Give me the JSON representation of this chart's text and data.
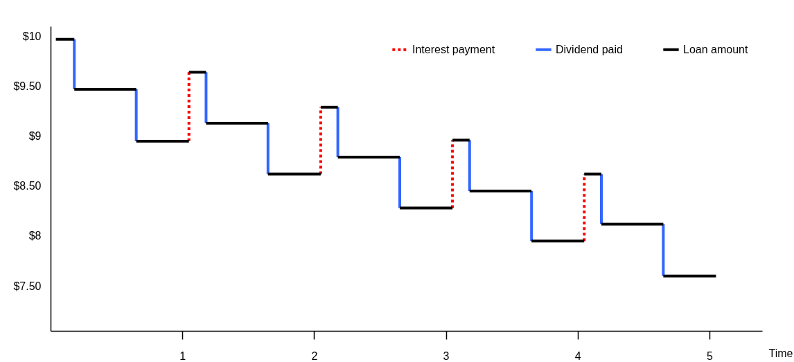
{
  "chart_data": {
    "type": "line",
    "xlabel": "Time",
    "legend": "top right",
    "xlim": [
      0,
      5.4
    ],
    "ylim": [
      7.05,
      10.1
    ],
    "xticks": [
      1,
      2,
      3,
      4,
      5
    ],
    "yticks": [
      {
        "value": 7.5,
        "label": "$7.50"
      },
      {
        "value": 8,
        "label": "$8"
      },
      {
        "value": 8.5,
        "label": "$8.50"
      },
      {
        "value": 9,
        "label": "$9"
      },
      {
        "value": 9.5,
        "label": "$9.50"
      },
      {
        "value": 10,
        "label": "$10"
      }
    ],
    "series": [
      {
        "name": "Interest payment",
        "color": "#ff0000",
        "line_style": "dotted",
        "x": [
          1.05,
          1.05,
          null,
          2.05,
          2.05,
          null,
          3.05,
          3.05,
          null,
          4.05,
          4.05
        ],
        "values": [
          8.95,
          9.64,
          null,
          8.62,
          9.29,
          null,
          8.28,
          8.96,
          null,
          7.95,
          8.62
        ]
      },
      {
        "name": "Dividend paid",
        "color": "#3366ff",
        "line_style": "solid",
        "x": [
          0.18,
          0.18,
          null,
          0.65,
          0.65,
          null,
          1.18,
          1.18,
          null,
          1.65,
          1.65,
          null,
          2.18,
          2.18,
          null,
          2.65,
          2.65,
          null,
          3.18,
          3.18,
          null,
          3.65,
          3.65,
          null,
          4.18,
          4.18,
          null,
          4.65,
          4.65
        ],
        "values": [
          9.97,
          9.47,
          null,
          9.47,
          8.95,
          null,
          9.64,
          9.13,
          null,
          9.13,
          8.62,
          null,
          9.29,
          8.79,
          null,
          8.79,
          8.28,
          null,
          8.96,
          8.45,
          null,
          8.45,
          7.95,
          null,
          8.62,
          8.12,
          null,
          8.12,
          7.6
        ]
      },
      {
        "name": "Loan amount",
        "color": "#000000",
        "line_style": "solid",
        "x": [
          0.04,
          0.18,
          null,
          0.18,
          0.65,
          null,
          0.65,
          1.05,
          null,
          1.05,
          1.18,
          null,
          1.18,
          1.65,
          null,
          1.65,
          2.05,
          null,
          2.05,
          2.18,
          null,
          2.18,
          2.65,
          null,
          2.65,
          3.05,
          null,
          3.05,
          3.18,
          null,
          3.18,
          3.65,
          null,
          3.65,
          4.05,
          null,
          4.05,
          4.18,
          null,
          4.18,
          4.65,
          null,
          4.65,
          5.05
        ],
        "values": [
          9.97,
          9.97,
          null,
          9.47,
          9.47,
          null,
          8.95,
          8.95,
          null,
          9.64,
          9.64,
          null,
          9.13,
          9.13,
          null,
          8.62,
          8.62,
          null,
          9.29,
          9.29,
          null,
          8.79,
          8.79,
          null,
          8.28,
          8.28,
          null,
          8.96,
          8.96,
          null,
          8.45,
          8.45,
          null,
          7.95,
          7.95,
          null,
          8.62,
          8.62,
          null,
          8.12,
          8.12,
          null,
          7.6,
          7.6
        ]
      }
    ]
  }
}
